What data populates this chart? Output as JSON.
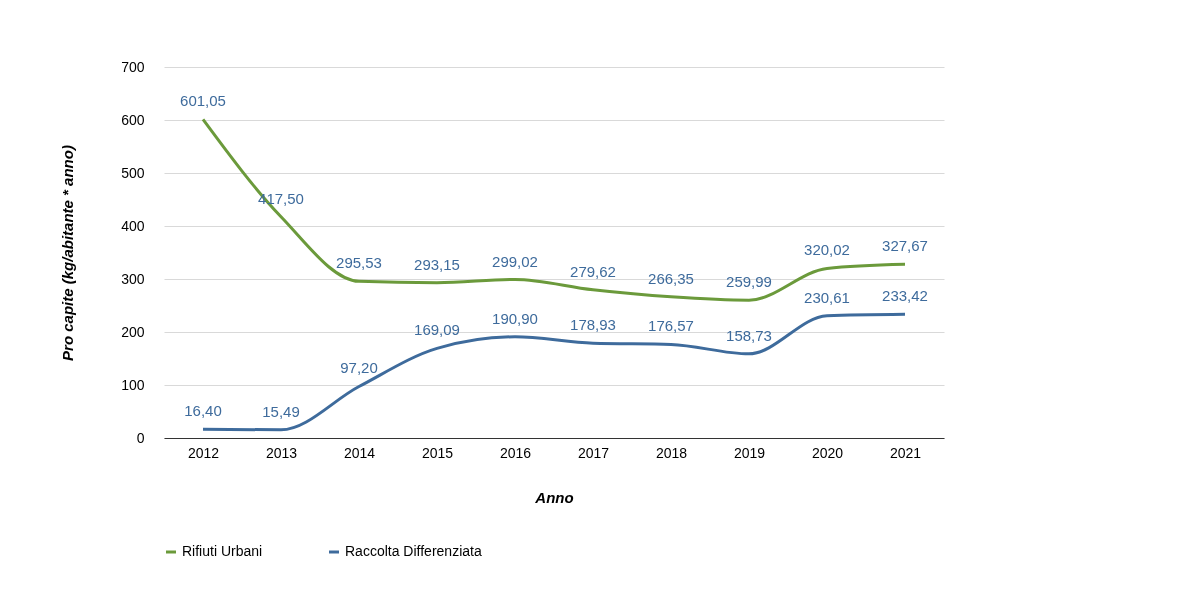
{
  "chart_data": {
    "type": "line",
    "xlabel": "Anno",
    "ylabel": "Pro capite (kg/abitante * anno)",
    "categories": [
      "2012",
      "2013",
      "2014",
      "2015",
      "2016",
      "2017",
      "2018",
      "2019",
      "2020",
      "2021"
    ],
    "series": [
      {
        "name": "Rifiuti Urbani",
        "color": "#6b9a3b",
        "values": [
          601.05,
          417.5,
          295.53,
          293.15,
          299.02,
          279.62,
          266.35,
          259.99,
          320.02,
          327.67
        ],
        "value_labels": [
          "601,05",
          "417,50",
          "295,53",
          "293,15",
          "299,02",
          "279,62",
          "266,35",
          "259,99",
          "320,02",
          "327,67"
        ]
      },
      {
        "name": "Raccolta Differenziata",
        "color": "#3e6b9c",
        "values": [
          16.4,
          15.49,
          97.2,
          169.09,
          190.9,
          178.93,
          176.57,
          158.73,
          230.61,
          233.42
        ],
        "value_labels": [
          "16,40",
          "15,49",
          "97,20",
          "169,09",
          "190,90",
          "178,93",
          "176,57",
          "158,73",
          "230,61",
          "233,42"
        ]
      }
    ],
    "ylim": [
      0,
      700
    ],
    "yticks": [
      0,
      100,
      200,
      300,
      400,
      500,
      600,
      700
    ],
    "grid": "y",
    "legend": "bottom",
    "marker": "none",
    "line_style": "solid"
  }
}
